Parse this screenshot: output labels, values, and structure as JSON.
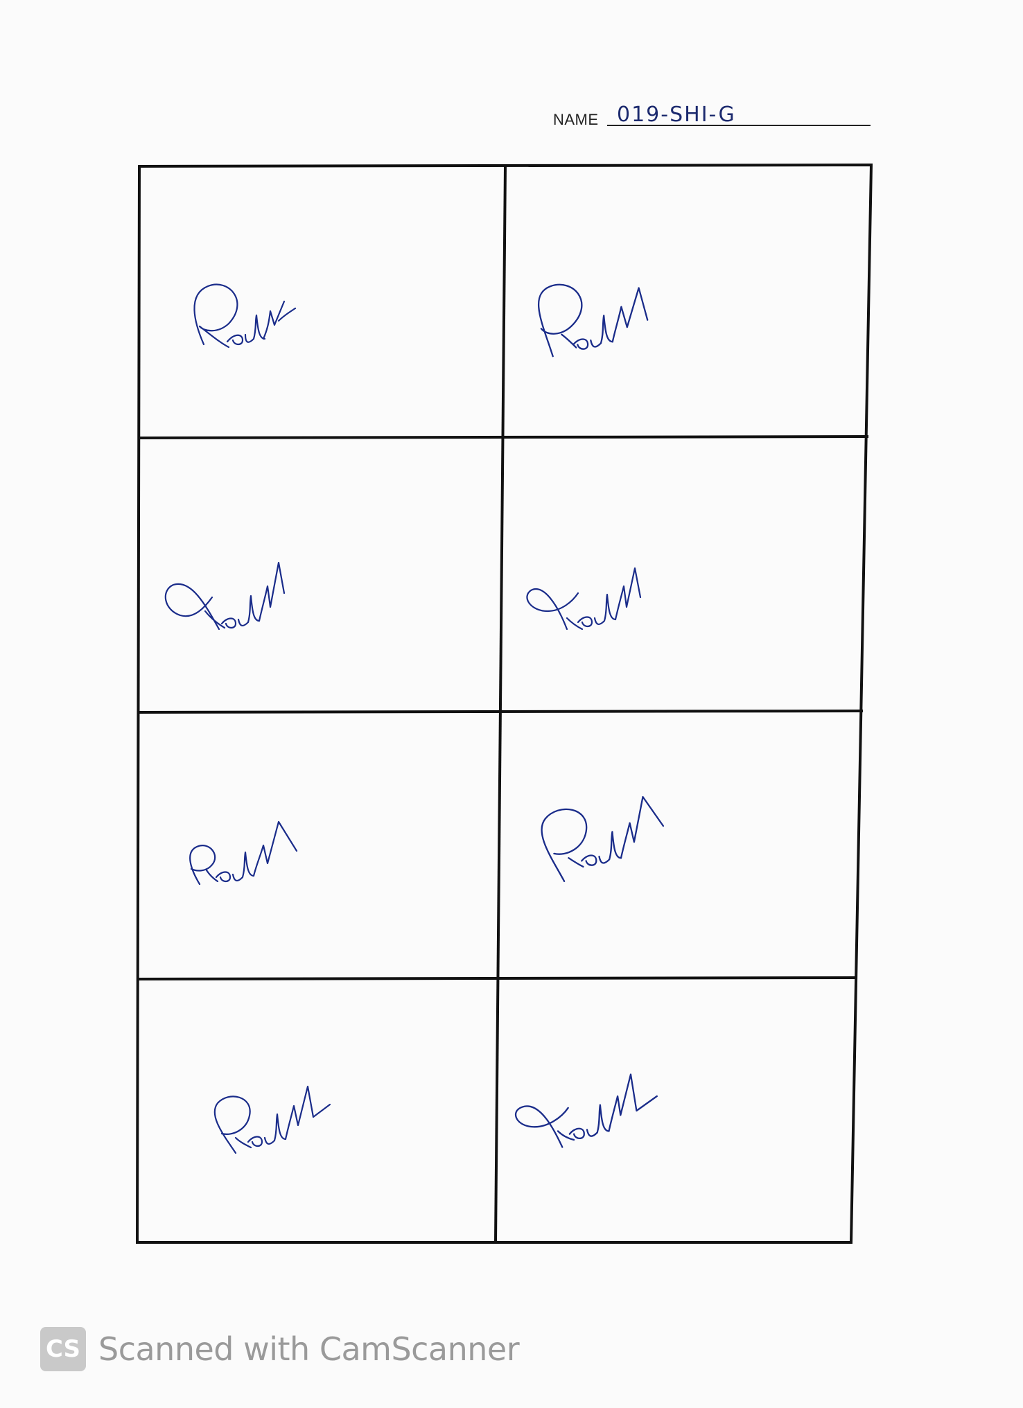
{
  "form": {
    "name_label": "NAME",
    "name_value": "019-SHI-G"
  },
  "signature_grid": {
    "rows": 4,
    "columns": 2,
    "cells": [
      {
        "id": "r1c1",
        "content": "handwritten signature"
      },
      {
        "id": "r1c2",
        "content": "handwritten signature"
      },
      {
        "id": "r2c1",
        "content": "handwritten signature"
      },
      {
        "id": "r2c2",
        "content": "handwritten signature"
      },
      {
        "id": "r3c1",
        "content": "handwritten signature"
      },
      {
        "id": "r3c2",
        "content": "handwritten signature"
      },
      {
        "id": "r4c1",
        "content": "handwritten signature"
      },
      {
        "id": "r4c2",
        "content": "handwritten signature"
      }
    ],
    "ink_color": "#1a2c8a",
    "line_color": "#111111"
  },
  "footer": {
    "logo_text": "CS",
    "text": "Scanned with CamScanner",
    "logo_color": "#c9c9c9",
    "text_color": "#9a9a9a"
  }
}
